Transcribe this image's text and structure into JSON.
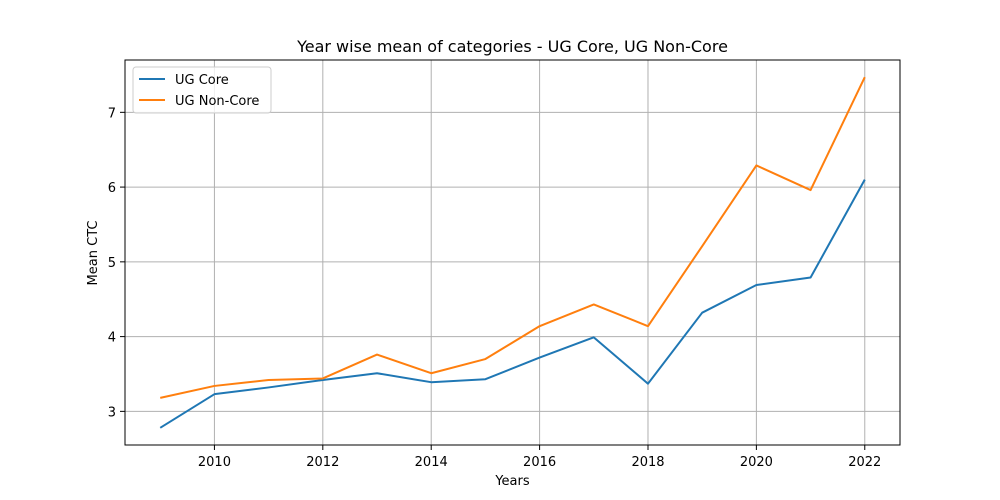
{
  "chart_data": {
    "type": "line",
    "title": "Year wise mean of categories - UG Core, UG Non-Core",
    "xlabel": "Years",
    "ylabel": "Mean CTC",
    "x": [
      2009,
      2010,
      2011,
      2012,
      2013,
      2014,
      2015,
      2016,
      2017,
      2018,
      2019,
      2020,
      2021,
      2022
    ],
    "series": [
      {
        "name": "UG Core",
        "color": "#1f77b4",
        "values": [
          2.78,
          3.23,
          3.32,
          3.42,
          3.51,
          3.39,
          3.43,
          3.72,
          3.99,
          3.37,
          4.32,
          4.69,
          4.79,
          6.1
        ]
      },
      {
        "name": "UG Non-Core",
        "color": "#ff7f0e",
        "values": [
          3.18,
          3.34,
          3.42,
          3.44,
          3.76,
          3.51,
          3.7,
          4.14,
          4.43,
          4.14,
          5.21,
          6.29,
          5.96,
          7.47
        ]
      }
    ],
    "xlim": [
      2008.35,
      2022.65
    ],
    "ylim": [
      2.55,
      7.7
    ],
    "xticks": [
      2010,
      2012,
      2014,
      2016,
      2018,
      2020,
      2022
    ],
    "yticks": [
      3,
      4,
      5,
      6,
      7
    ],
    "grid": true,
    "legend_position": "top-left"
  }
}
